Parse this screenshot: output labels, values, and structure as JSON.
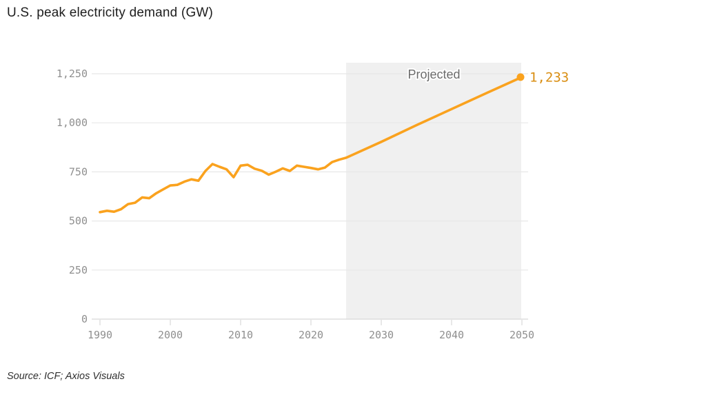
{
  "page": {
    "title": "U.S. peak electricity demand (GW)",
    "source": "Source: ICF; Axios Visuals"
  },
  "chart_data": {
    "type": "line",
    "title": "U.S. peak electricity demand (GW)",
    "unit": "GW",
    "xlim": [
      1990,
      2050
    ],
    "ylim": [
      0,
      1250
    ],
    "grid": "horizontal-only",
    "legend_position": "none",
    "x_ticks": [
      {
        "value": 1990,
        "label": "1990"
      },
      {
        "value": 2000,
        "label": "2000"
      },
      {
        "value": 2010,
        "label": "2010"
      },
      {
        "value": 2020,
        "label": "2020"
      },
      {
        "value": 2030,
        "label": "2030"
      },
      {
        "value": 2040,
        "label": "2040"
      },
      {
        "value": 2050,
        "label": "2050"
      }
    ],
    "y_ticks": [
      {
        "value": 0,
        "label": "0"
      },
      {
        "value": 250,
        "label": "250"
      },
      {
        "value": 500,
        "label": "500"
      },
      {
        "value": 750,
        "label": "750"
      },
      {
        "value": 1000,
        "label": "1,000"
      },
      {
        "value": 1250,
        "label": "1,250"
      }
    ],
    "projection": {
      "start_year": 2025,
      "end_year": 2050,
      "band_label": "Projected"
    },
    "end_annotation": {
      "year": 2050,
      "value": 1233,
      "label": "1,233"
    },
    "series": [
      {
        "name": "U.S. peak electricity demand (historical)",
        "segment": "historical",
        "points": [
          [
            1990,
            545
          ],
          [
            1991,
            552
          ],
          [
            1992,
            547
          ],
          [
            1993,
            560
          ],
          [
            1994,
            586
          ],
          [
            1995,
            593
          ],
          [
            1996,
            620
          ],
          [
            1997,
            616
          ],
          [
            1998,
            641
          ],
          [
            1999,
            661
          ],
          [
            2000,
            681
          ],
          [
            2001,
            684
          ],
          [
            2002,
            700
          ],
          [
            2003,
            712
          ],
          [
            2004,
            705
          ],
          [
            2005,
            755
          ],
          [
            2006,
            790
          ],
          [
            2007,
            776
          ],
          [
            2008,
            763
          ],
          [
            2009,
            723
          ],
          [
            2010,
            782
          ],
          [
            2011,
            786
          ],
          [
            2012,
            766
          ],
          [
            2013,
            756
          ],
          [
            2014,
            736
          ],
          [
            2015,
            751
          ],
          [
            2016,
            768
          ],
          [
            2017,
            755
          ],
          [
            2018,
            782
          ],
          [
            2019,
            776
          ],
          [
            2020,
            770
          ],
          [
            2021,
            763
          ],
          [
            2022,
            772
          ],
          [
            2023,
            800
          ],
          [
            2024,
            812
          ]
        ]
      },
      {
        "name": "U.S. peak electricity demand (projected)",
        "segment": "projected",
        "points": [
          [
            2025,
            822
          ],
          [
            2030,
            903
          ],
          [
            2035,
            988
          ],
          [
            2040,
            1070
          ],
          [
            2045,
            1152
          ],
          [
            2050,
            1233
          ]
        ]
      }
    ],
    "colors": {
      "line": "#FAA21E",
      "end_dot": "#FAA21E",
      "end_label_text": "#D98E12",
      "projection_band": "#F0F0F0",
      "grid": "#E7E7E7",
      "axis": "#D8D8D8",
      "tick_text": "#8F8F8F",
      "projected_text": "#6B6B6B",
      "title_text": "#1D1D1D",
      "source_text": "#2F2F2F"
    }
  }
}
